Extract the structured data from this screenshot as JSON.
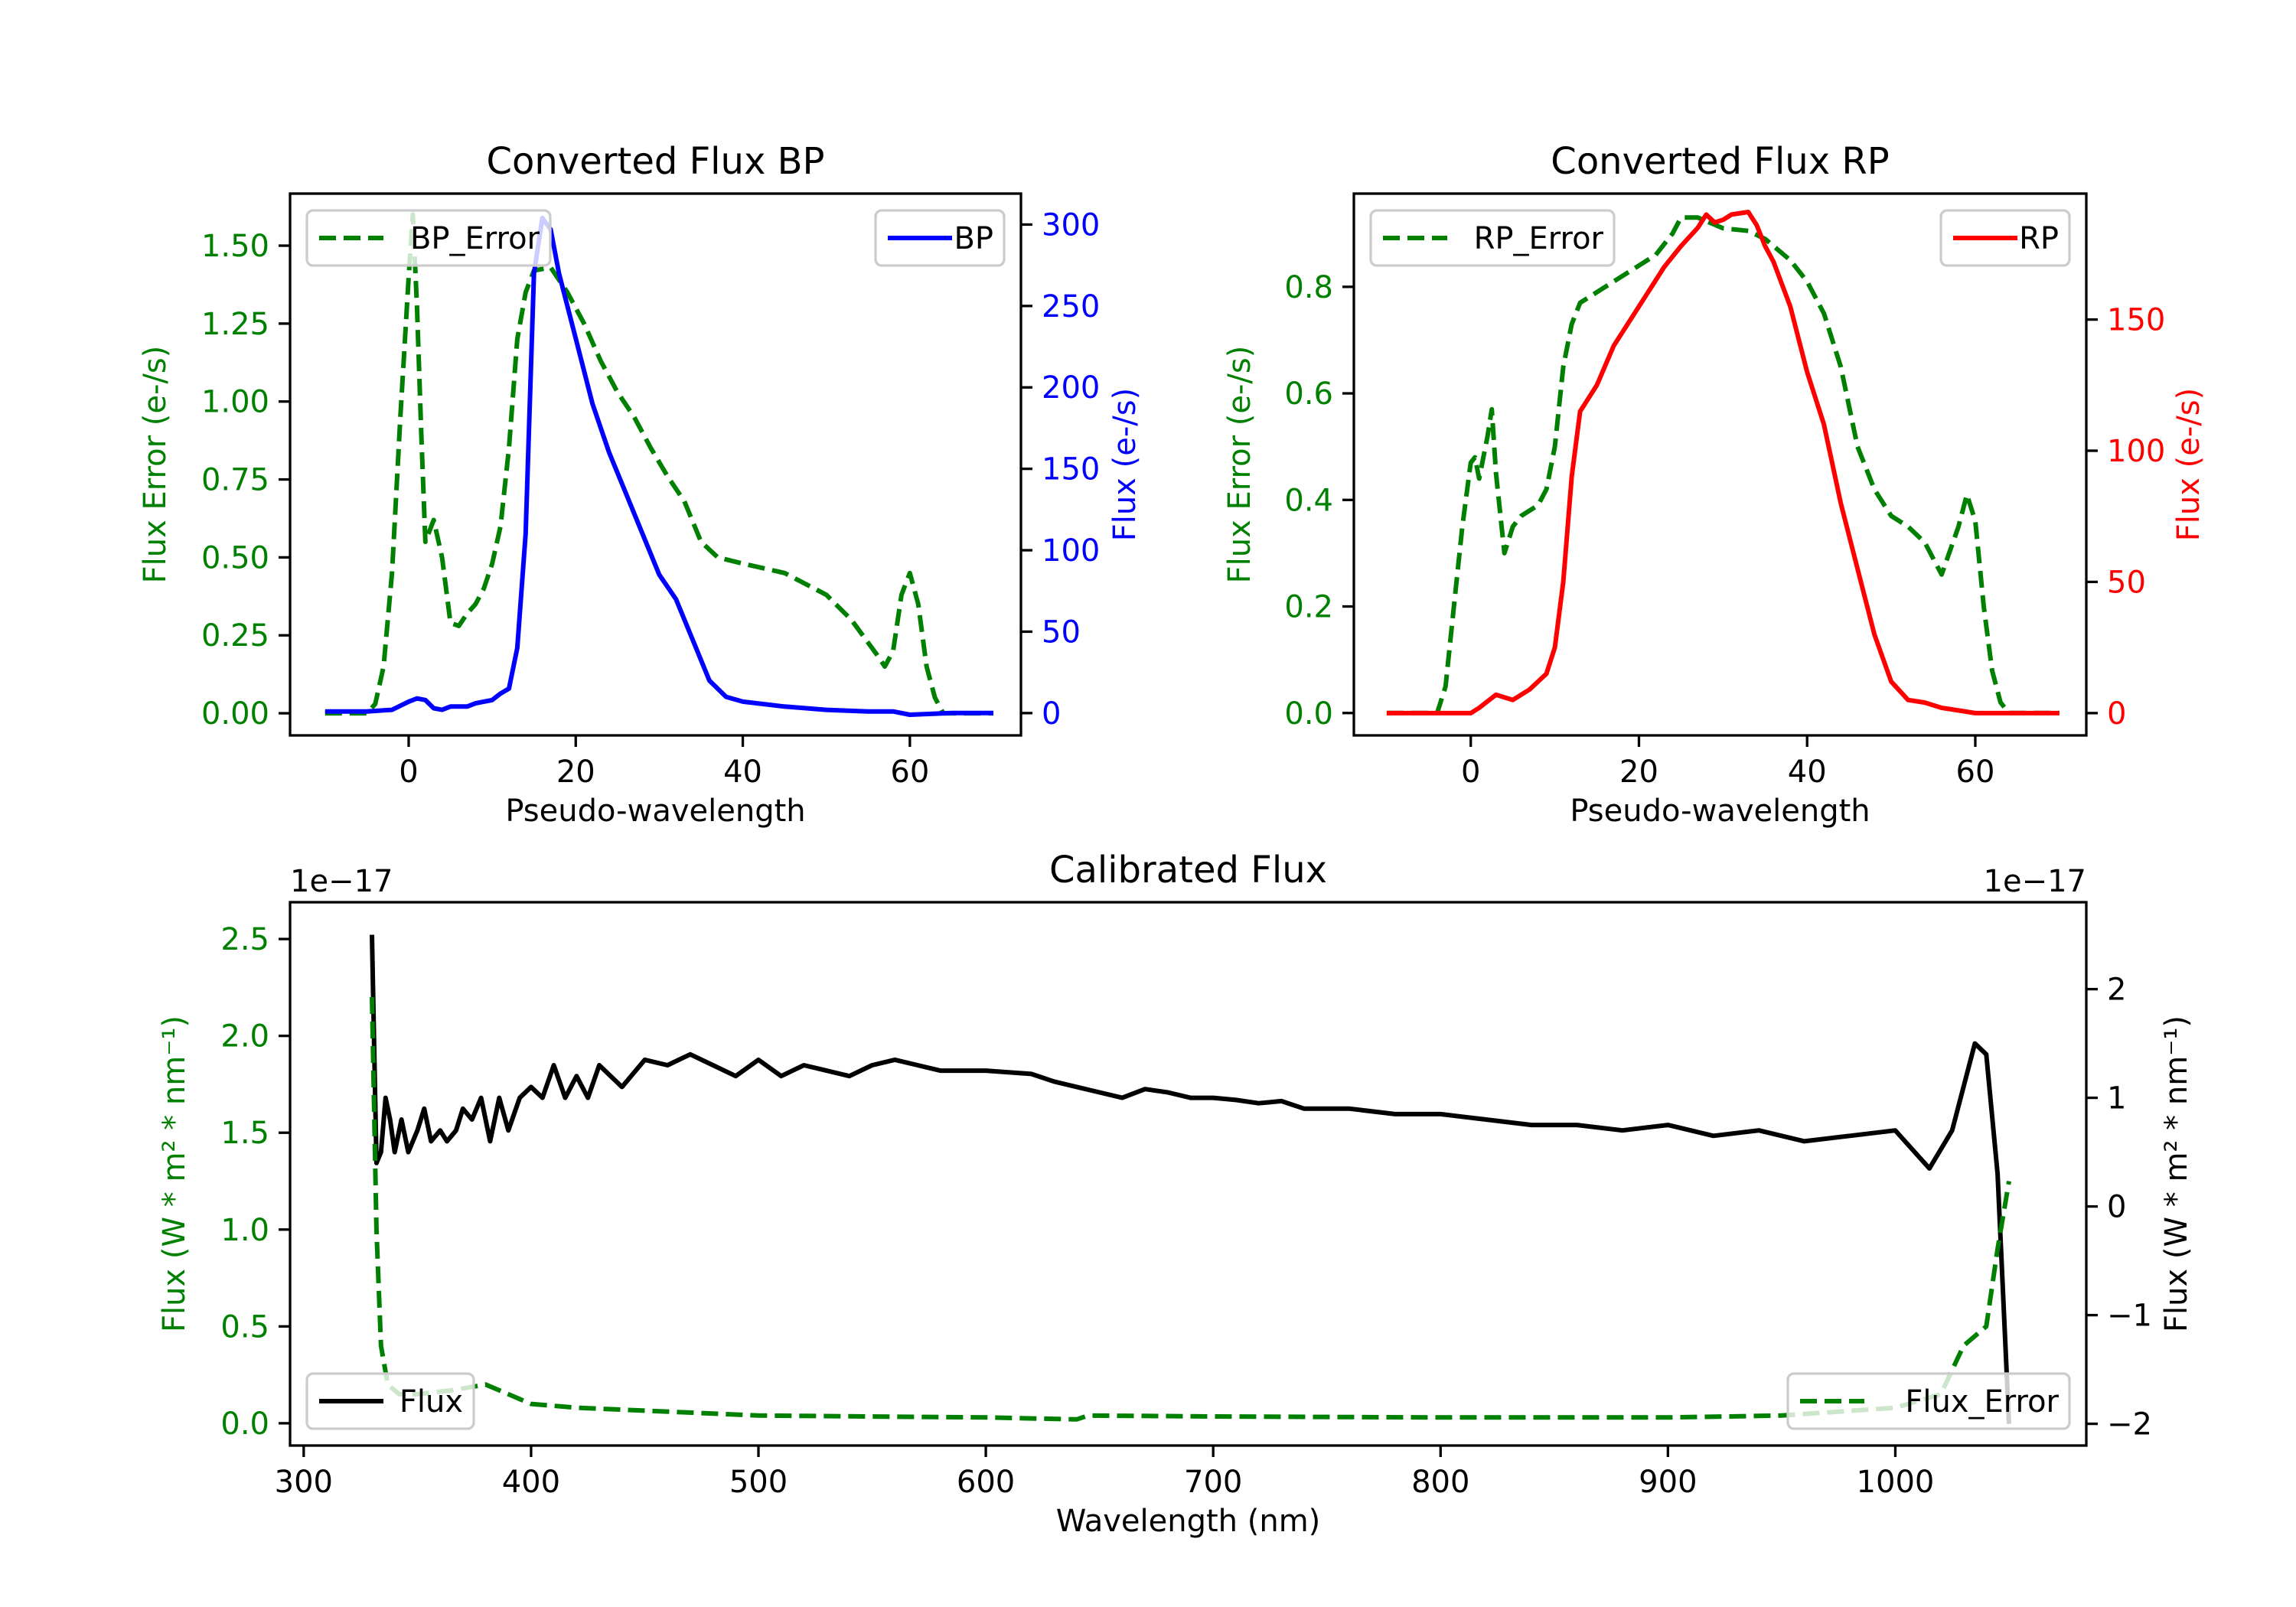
{
  "chart_data": [
    {
      "type": "line",
      "title": "Converted Flux BP",
      "xlabel": "Pseudo-wavelength",
      "xlim": [
        -14.2,
        73.3
      ],
      "xticks": [
        0,
        20,
        40,
        60
      ],
      "left_axis": {
        "label": "Flux Error (e-/s)",
        "color": "#008000",
        "lim": [
          -0.071,
          1.667
        ],
        "ticks": [
          0.0,
          0.25,
          0.5,
          0.75,
          1.0,
          1.25,
          1.5
        ],
        "tick_labels": [
          "0.00",
          "0.25",
          "0.50",
          "0.75",
          "1.00",
          "1.25",
          "1.50"
        ]
      },
      "right_axis": {
        "label": "Flux (e-/s)",
        "color": "#0000ff",
        "lim": [
          -13.7,
          319
        ],
        "ticks": [
          0,
          50,
          100,
          150,
          200,
          250,
          300
        ],
        "tick_labels": [
          "0",
          "50",
          "100",
          "150",
          "200",
          "250",
          "300"
        ]
      },
      "series": [
        {
          "name": "BP_Error",
          "axis": "left",
          "color": "#008000",
          "style": "dashed",
          "legend": "upper left",
          "x": [
            -10,
            -5,
            -4,
            -3,
            -2,
            -1,
            0,
            0.5,
            1,
            1.5,
            2,
            3,
            4,
            5,
            6,
            7,
            8,
            9,
            10,
            11,
            12,
            13,
            14,
            15,
            17,
            19,
            21,
            23,
            25,
            27,
            29,
            31,
            33,
            35,
            37,
            40,
            45,
            50,
            53,
            56,
            57,
            58,
            59,
            60,
            61,
            62,
            63,
            64,
            70
          ],
          "y": [
            0,
            0,
            0.03,
            0.15,
            0.45,
            0.95,
            1.4,
            1.6,
            1.3,
            0.9,
            0.55,
            0.62,
            0.5,
            0.29,
            0.28,
            0.32,
            0.35,
            0.4,
            0.48,
            0.6,
            0.85,
            1.2,
            1.35,
            1.42,
            1.43,
            1.35,
            1.25,
            1.13,
            1.03,
            0.95,
            0.85,
            0.76,
            0.68,
            0.55,
            0.5,
            0.48,
            0.45,
            0.38,
            0.3,
            0.19,
            0.15,
            0.2,
            0.38,
            0.45,
            0.35,
            0.15,
            0.05,
            0,
            0
          ]
        },
        {
          "name": "BP",
          "axis": "right",
          "color": "#0000ff",
          "style": "solid",
          "legend": "upper right",
          "x": [
            -10,
            -5,
            -2,
            0,
            1,
            2,
            3,
            4,
            5,
            7,
            8,
            10,
            11,
            12,
            13,
            14,
            15,
            16,
            17,
            18,
            20,
            22,
            24,
            26,
            28,
            30,
            32,
            34,
            36,
            38,
            40,
            45,
            50,
            55,
            58,
            60,
            65,
            70
          ],
          "y": [
            1,
            1,
            2,
            7,
            9,
            8,
            3,
            2,
            4,
            4,
            6,
            8,
            12,
            15,
            40,
            110,
            270,
            304,
            297,
            270,
            230,
            190,
            160,
            135,
            110,
            85,
            70,
            45,
            20,
            10,
            7,
            4,
            2,
            1,
            1,
            -1,
            0,
            0
          ]
        }
      ]
    },
    {
      "type": "line",
      "title": "Converted Flux RP",
      "xlabel": "Pseudo-wavelength",
      "xlim": [
        -13.9,
        73.2
      ],
      "xticks": [
        0,
        20,
        40,
        60
      ],
      "left_axis": {
        "label": "Flux Error (e-/s)",
        "color": "#008000",
        "lim": [
          -0.042,
          0.975
        ],
        "ticks": [
          0.0,
          0.2,
          0.4,
          0.6,
          0.8
        ],
        "tick_labels": [
          "0.0",
          "0.2",
          "0.4",
          "0.6",
          "0.8"
        ]
      },
      "right_axis": {
        "label": "Flux (e-/s)",
        "color": "#ff0000",
        "lim": [
          -8.5,
          198
        ],
        "ticks": [
          0,
          50,
          100,
          150
        ],
        "tick_labels": [
          "0",
          "50",
          "100",
          "150"
        ]
      },
      "series": [
        {
          "name": "RP_Error",
          "axis": "left",
          "color": "#008000",
          "style": "dashed",
          "legend": "upper left",
          "x": [
            -10,
            -4,
            -3,
            -2,
            -1,
            0,
            0.5,
            1,
            2,
            2.5,
            3,
            4,
            5,
            6,
            7,
            8,
            9,
            10,
            11,
            12,
            13,
            15,
            18,
            20,
            22,
            24,
            25,
            27,
            30,
            33,
            35,
            38,
            40,
            42,
            44,
            46,
            48,
            50,
            52,
            54,
            56,
            58,
            59,
            60,
            61,
            62,
            63,
            64,
            70
          ],
          "y": [
            0,
            0,
            0.05,
            0.2,
            0.35,
            0.47,
            0.48,
            0.44,
            0.52,
            0.57,
            0.45,
            0.3,
            0.35,
            0.37,
            0.38,
            0.39,
            0.42,
            0.5,
            0.65,
            0.73,
            0.77,
            0.79,
            0.82,
            0.84,
            0.86,
            0.9,
            0.93,
            0.93,
            0.91,
            0.905,
            0.89,
            0.85,
            0.81,
            0.75,
            0.65,
            0.5,
            0.42,
            0.37,
            0.35,
            0.32,
            0.26,
            0.35,
            0.41,
            0.36,
            0.2,
            0.08,
            0.02,
            0,
            0
          ]
        },
        {
          "name": "RP",
          "axis": "right",
          "color": "#ff0000",
          "style": "solid",
          "legend": "upper right",
          "x": [
            -10,
            0,
            1,
            3,
            5,
            7,
            9,
            10,
            11,
            12,
            13,
            15,
            17,
            19,
            21,
            23,
            25,
            27,
            28,
            29,
            30,
            31,
            33,
            34,
            35,
            36,
            38,
            40,
            42,
            44,
            46,
            48,
            50,
            52,
            54,
            56,
            58,
            60,
            70
          ],
          "y": [
            0,
            0,
            2,
            7,
            5,
            9,
            15,
            25,
            50,
            90,
            115,
            125,
            140,
            150,
            160,
            170,
            178,
            185,
            190,
            187,
            188,
            190,
            191,
            186,
            178,
            172,
            155,
            130,
            110,
            80,
            55,
            30,
            12,
            5,
            4,
            2,
            1,
            0,
            0
          ]
        }
      ]
    },
    {
      "type": "line",
      "title": "Calibrated Flux",
      "xlabel": "Wavelength (nm)",
      "xlim": [
        294,
        1084
      ],
      "xticks": [
        300,
        400,
        500,
        600,
        700,
        800,
        900,
        1000
      ],
      "left_axis": {
        "label": "Flux (W * m² * nm⁻¹)",
        "color": "#008000",
        "offset_text": "1e−17",
        "lim": [
          -0.115,
          2.69
        ],
        "ticks": [
          0,
          0.5,
          1.0,
          1.5,
          2.0,
          2.5
        ],
        "tick_labels": [
          "0.0",
          "0.5",
          "1.0",
          "1.5",
          "2.0",
          "2.5"
        ]
      },
      "right_axis": {
        "label": "Flux (W * m² * nm⁻¹)",
        "color": "#000000",
        "offset_text": "1e−17",
        "lim": [
          -2.2,
          2.8
        ],
        "ticks": [
          -2,
          -1,
          0,
          1,
          2
        ],
        "tick_labels": [
          "−2",
          "−1",
          "0",
          "1",
          "2"
        ]
      },
      "series": [
        {
          "name": "Flux",
          "axis": "right",
          "color": "#000000",
          "style": "solid",
          "legend": "lower left",
          "x": [
            330,
            332,
            334,
            336,
            338,
            340,
            343,
            346,
            350,
            353,
            356,
            360,
            363,
            367,
            370,
            374,
            378,
            382,
            386,
            390,
            395,
            400,
            405,
            410,
            415,
            420,
            425,
            430,
            440,
            450,
            460,
            470,
            480,
            490,
            500,
            510,
            520,
            530,
            540,
            550,
            560,
            570,
            580,
            600,
            620,
            630,
            640,
            650,
            660,
            670,
            680,
            690,
            700,
            710,
            720,
            730,
            740,
            760,
            780,
            800,
            820,
            840,
            860,
            880,
            900,
            920,
            940,
            960,
            980,
            1000,
            1015,
            1025,
            1035,
            1040,
            1045,
            1050
          ],
          "y": [
            2.5,
            0.4,
            0.5,
            1.0,
            0.8,
            0.5,
            0.8,
            0.5,
            0.7,
            0.9,
            0.6,
            0.7,
            0.6,
            0.7,
            0.9,
            0.8,
            1.0,
            0.6,
            1.0,
            0.7,
            1.0,
            1.1,
            1.0,
            1.3,
            1.0,
            1.2,
            1.0,
            1.3,
            1.1,
            1.35,
            1.3,
            1.4,
            1.3,
            1.2,
            1.35,
            1.2,
            1.3,
            1.25,
            1.2,
            1.3,
            1.35,
            1.3,
            1.25,
            1.25,
            1.22,
            1.15,
            1.1,
            1.05,
            1.0,
            1.08,
            1.05,
            1.0,
            1.0,
            0.98,
            0.95,
            0.97,
            0.9,
            0.9,
            0.85,
            0.85,
            0.8,
            0.75,
            0.75,
            0.7,
            0.75,
            0.65,
            0.7,
            0.6,
            0.65,
            0.7,
            0.35,
            0.7,
            1.5,
            1.4,
            0.3,
            -2.0
          ]
        },
        {
          "name": "Flux_Error",
          "axis": "left",
          "color": "#008000",
          "style": "dashed",
          "legend": "lower right",
          "x": [
            330,
            332,
            334,
            337,
            342,
            350,
            365,
            380,
            390,
            400,
            420,
            500,
            600,
            640,
            645,
            700,
            800,
            900,
            950,
            1000,
            1020,
            1030,
            1040,
            1045,
            1050
          ],
          "y": [
            2.2,
            1.0,
            0.4,
            0.2,
            0.15,
            0.15,
            0.17,
            0.2,
            0.15,
            0.1,
            0.08,
            0.04,
            0.03,
            0.02,
            0.04,
            0.035,
            0.03,
            0.03,
            0.04,
            0.08,
            0.15,
            0.4,
            0.5,
            0.9,
            1.25
          ]
        }
      ]
    }
  ]
}
